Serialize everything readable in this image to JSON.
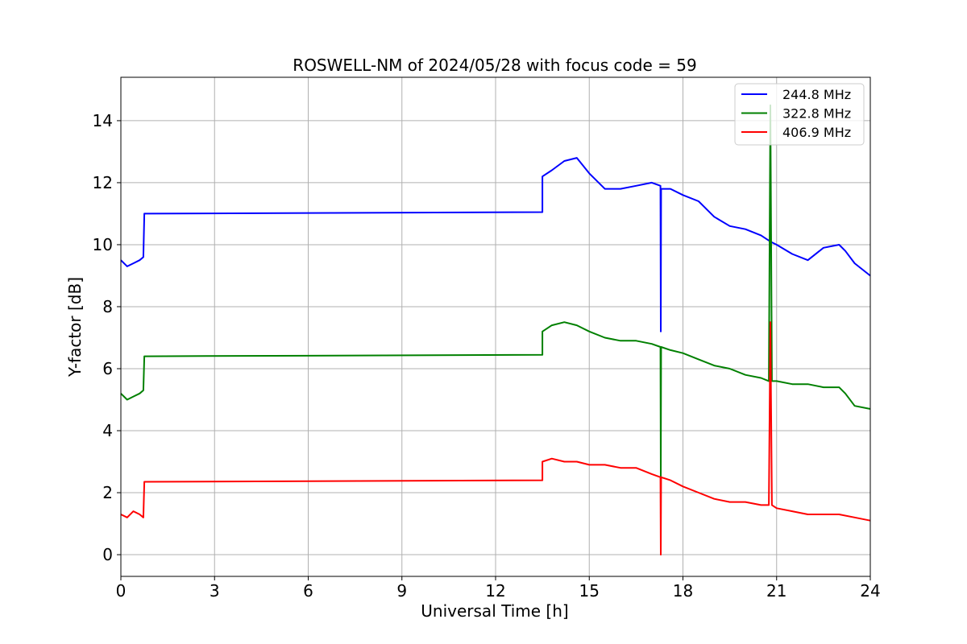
{
  "chart_data": {
    "type": "line",
    "title": "ROSWELL-NM of 2024/05/28 with focus code = 59",
    "xlabel": "Universal Time [h]",
    "ylabel": "Y-factor [dB]",
    "xlim": [
      0,
      24
    ],
    "ylim": [
      -0.7,
      15.4
    ],
    "xticks": [
      0,
      3,
      6,
      9,
      12,
      15,
      18,
      21,
      24
    ],
    "yticks": [
      0,
      2,
      4,
      6,
      8,
      10,
      12,
      14
    ],
    "grid": true,
    "legend_position": "top-right",
    "series": [
      {
        "name": "244.8 MHz",
        "color": "#0000ff",
        "x": [
          0,
          0.2,
          0.4,
          0.6,
          0.72,
          0.75,
          13.5,
          13.5,
          13.8,
          14.2,
          14.6,
          15.0,
          15.5,
          16.0,
          16.5,
          17.0,
          17.28,
          17.29,
          17.3,
          17.6,
          18.0,
          18.5,
          19.0,
          19.5,
          20.0,
          20.5,
          20.8,
          21.0,
          21.5,
          22.0,
          22.5,
          23.0,
          23.2,
          23.5,
          24.0
        ],
        "y": [
          9.5,
          9.3,
          9.4,
          9.5,
          9.6,
          11.0,
          11.05,
          12.2,
          12.4,
          12.7,
          12.8,
          12.3,
          11.8,
          11.8,
          11.9,
          12.0,
          11.9,
          7.2,
          11.8,
          11.8,
          11.6,
          11.4,
          10.9,
          10.6,
          10.5,
          10.3,
          10.1,
          10.0,
          9.7,
          9.5,
          9.9,
          10.0,
          9.8,
          9.4,
          9.0
        ]
      },
      {
        "name": "322.8 MHz",
        "color": "#008000",
        "x": [
          0,
          0.2,
          0.4,
          0.6,
          0.72,
          0.75,
          13.5,
          13.5,
          13.8,
          14.2,
          14.6,
          15.0,
          15.5,
          16.0,
          16.5,
          17.0,
          17.28,
          17.29,
          17.3,
          17.6,
          18.0,
          18.5,
          19.0,
          19.5,
          20.0,
          20.5,
          20.75,
          20.8,
          20.85,
          21.0,
          21.5,
          22.0,
          22.5,
          23.0,
          23.2,
          23.5,
          24.0
        ],
        "y": [
          5.2,
          5.0,
          5.1,
          5.2,
          5.3,
          6.4,
          6.45,
          7.2,
          7.4,
          7.5,
          7.4,
          7.2,
          7.0,
          6.9,
          6.9,
          6.8,
          6.7,
          2.4,
          6.7,
          6.6,
          6.5,
          6.3,
          6.1,
          6.0,
          5.8,
          5.7,
          5.6,
          14.5,
          5.6,
          5.6,
          5.5,
          5.5,
          5.4,
          5.4,
          5.2,
          4.8,
          4.7
        ]
      },
      {
        "name": "406.9 MHz",
        "color": "#ff0000",
        "x": [
          0,
          0.2,
          0.4,
          0.6,
          0.72,
          0.75,
          13.5,
          13.5,
          13.8,
          14.2,
          14.6,
          15.0,
          15.5,
          16.0,
          16.5,
          17.0,
          17.28,
          17.29,
          17.3,
          17.6,
          18.0,
          18.5,
          19.0,
          19.5,
          20.0,
          20.5,
          20.75,
          20.8,
          20.85,
          21.0,
          21.5,
          22.0,
          22.5,
          23.0,
          23.5,
          24.0
        ],
        "y": [
          1.3,
          1.2,
          1.4,
          1.3,
          1.2,
          2.35,
          2.4,
          3.0,
          3.1,
          3.0,
          3.0,
          2.9,
          2.9,
          2.8,
          2.8,
          2.6,
          2.5,
          0.0,
          2.5,
          2.4,
          2.2,
          2.0,
          1.8,
          1.7,
          1.7,
          1.6,
          1.6,
          7.5,
          1.6,
          1.5,
          1.4,
          1.3,
          1.3,
          1.3,
          1.2,
          1.1
        ]
      }
    ]
  }
}
